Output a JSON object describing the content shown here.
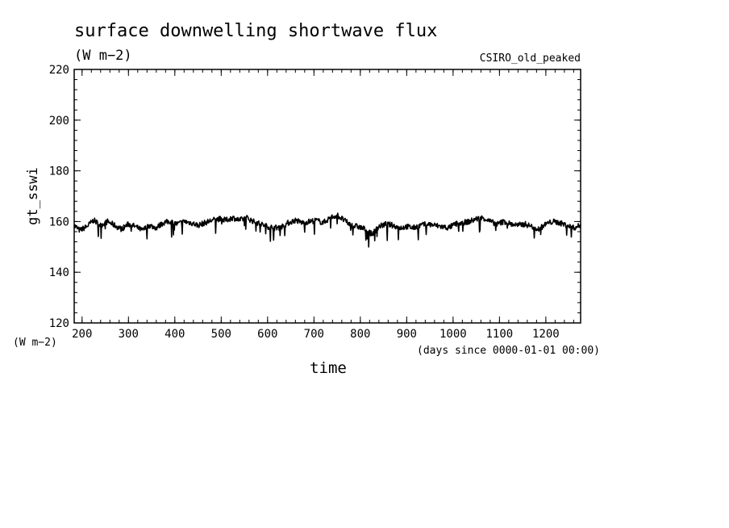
{
  "chart_data": {
    "type": "line",
    "title": "surface downwelling shortwave flux",
    "subtitle": "(W m−2)",
    "dataset": "CSIRO_old_peaked",
    "ylabel": "gt_sswi",
    "yunits": "(W m−2)",
    "xlabel": "time",
    "xunits": "(days since 0000-01-01 00:00)",
    "ylim": [
      120,
      220
    ],
    "xlim": [
      183,
      1275
    ],
    "yticks": [
      120,
      140,
      160,
      180,
      200,
      220
    ],
    "xticks": [
      200,
      300,
      400,
      500,
      600,
      700,
      800,
      900,
      1000,
      1100,
      1200
    ],
    "grid": false,
    "line_color": "#000000",
    "series": [
      {
        "x": [
          183,
          195,
          210,
          225,
          240,
          255,
          270,
          285,
          300,
          315,
          330,
          345,
          360,
          375,
          390,
          405,
          420,
          435,
          450,
          465,
          480,
          495,
          510,
          525,
          540,
          555,
          570,
          585,
          600,
          615,
          630,
          645,
          660,
          675,
          690,
          705,
          720,
          735,
          750,
          765,
          780,
          795,
          810,
          825,
          840,
          855,
          870,
          885,
          900,
          915,
          930,
          945,
          960,
          975,
          990,
          1005,
          1020,
          1035,
          1050,
          1065,
          1080,
          1095,
          1110,
          1125,
          1140,
          1155,
          1170,
          1185,
          1200,
          1215,
          1230,
          1245,
          1260,
          1275
        ],
        "y": [
          158.5,
          156.5,
          158.0,
          160.5,
          158.5,
          160.0,
          158.5,
          157.0,
          159.0,
          158.0,
          156.5,
          158.5,
          157.5,
          159.5,
          160.0,
          159.0,
          160.0,
          159.5,
          158.5,
          159.5,
          160.5,
          161.0,
          160.5,
          161.5,
          160.5,
          161.5,
          160.0,
          159.0,
          158.0,
          157.5,
          158.0,
          159.5,
          160.5,
          159.5,
          160.0,
          160.5,
          159.5,
          161.5,
          162.5,
          160.5,
          158.5,
          158.0,
          157.0,
          155.0,
          158.0,
          159.0,
          158.5,
          157.5,
          158.0,
          157.5,
          158.5,
          159.0,
          158.5,
          158.0,
          157.5,
          159.0,
          159.5,
          160.0,
          161.0,
          161.5,
          160.0,
          159.0,
          160.0,
          159.0,
          158.5,
          159.0,
          158.0,
          157.0,
          159.0,
          160.0,
          159.5,
          158.5,
          157.5,
          158.5
        ]
      }
    ]
  }
}
